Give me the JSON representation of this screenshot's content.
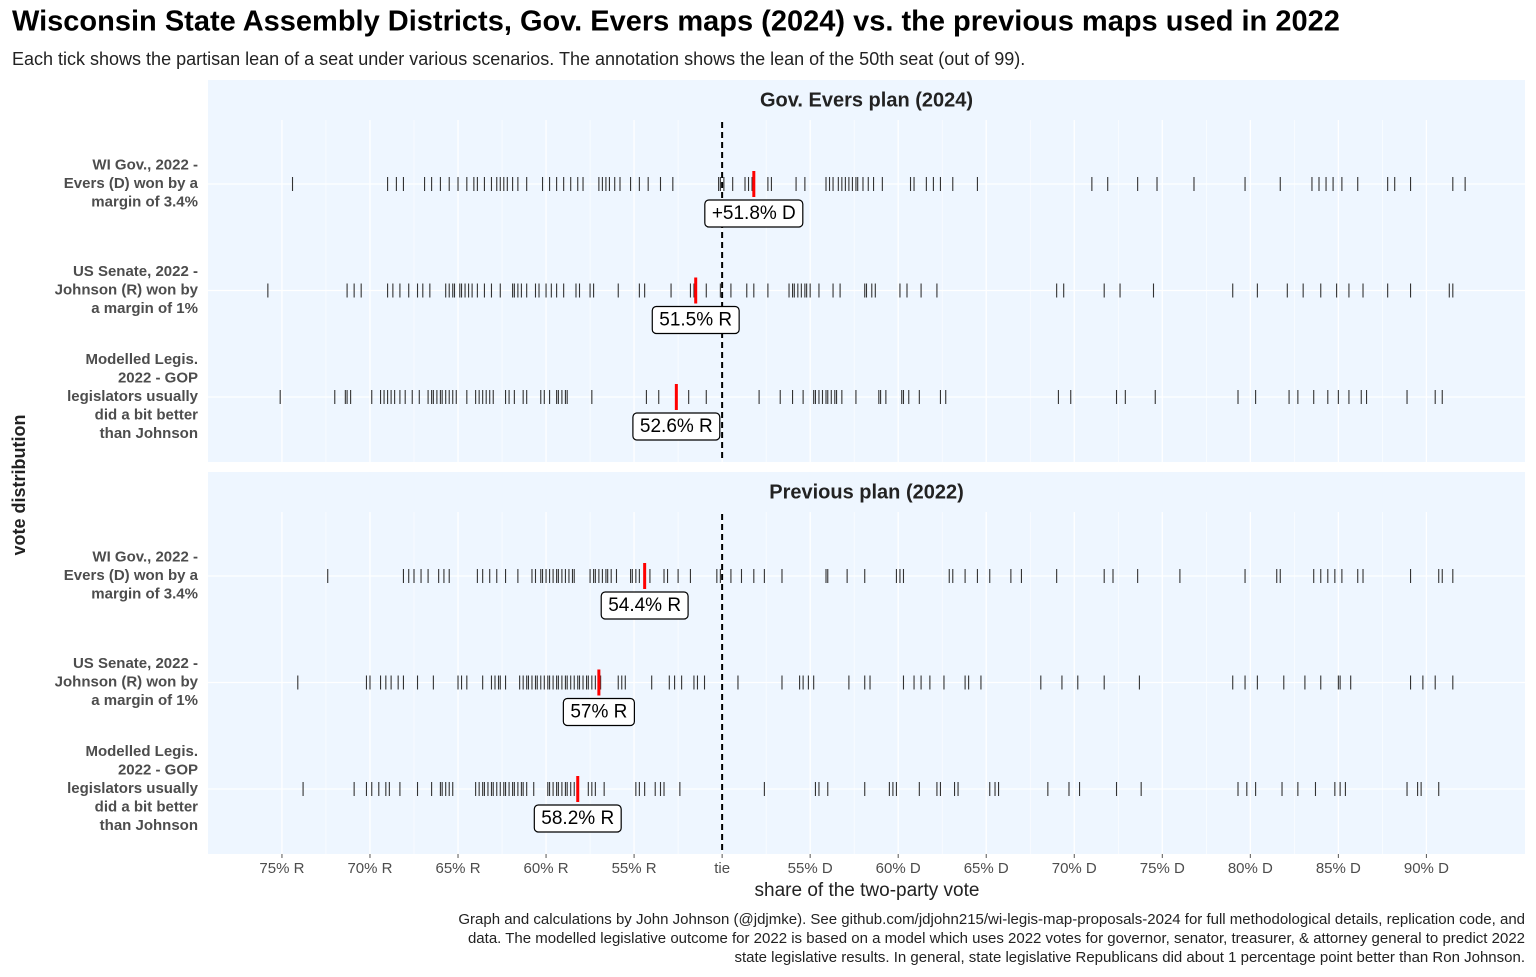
{
  "chart_data": {
    "type": "strip",
    "title": "Wisconsin State Assembly Districts, Gov. Evers maps (2024) vs. the previous maps used in 2022",
    "subtitle": "Each tick shows the partisan lean of a seat under various scenarios. The annotation shows the lean of the 50th seat (out of 99).",
    "x_label": "share of the two-party vote",
    "y_label": "vote distribution",
    "caption": [
      "Graph and calculations by John Johnson (@jdjmke). See github.com/jdjohn215/wi-legis-map-proposals-2024 for full methodological details, replication code, and",
      "data. The modelled legislative outcome for 2022 is based on a model which uses 2022 votes for governor, senator, treasurer, & attorney general to predict 2022",
      "state legislative results. In general, state legislative Republicans did about 1 percentage point better than Ron Johnson."
    ],
    "xlim": [
      -29.2,
      45.6
    ],
    "xticks": [
      {
        "value": -25,
        "label": "75% R"
      },
      {
        "value": -20,
        "label": "70% R"
      },
      {
        "value": -15,
        "label": "65% R"
      },
      {
        "value": -10,
        "label": "60% R"
      },
      {
        "value": -5,
        "label": "55% R"
      },
      {
        "value": 0,
        "label": "tie"
      },
      {
        "value": 5,
        "label": "55% D"
      },
      {
        "value": 10,
        "label": "60% D"
      },
      {
        "value": 15,
        "label": "65% D"
      },
      {
        "value": 20,
        "label": "70% D"
      },
      {
        "value": 25,
        "label": "75% D"
      },
      {
        "value": 30,
        "label": "80% D"
      },
      {
        "value": 35,
        "label": "85% D"
      },
      {
        "value": 40,
        "label": "90% D"
      }
    ],
    "vline": 0,
    "grid": true,
    "color": "#333333",
    "median_color": "#ff0000",
    "panels": [
      {
        "title": "Gov. Evers plan (2024)",
        "rows": [
          {
            "label_lines": [
              "WI Gov., 2022 -",
              "Evers (D) won by a",
              "margin of 3.4%"
            ],
            "median": 1.8,
            "median_label": "+51.8% D",
            "values": [
              -24.4,
              -19.0,
              -18.5,
              -18.1,
              -16.9,
              -16.5,
              -16.0,
              -15.5,
              -15.0,
              -14.5,
              -14.1,
              -13.9,
              -13.5,
              -13.1,
              -12.8,
              -12.6,
              -12.4,
              -12.2,
              -11.9,
              -11.6,
              -11.1,
              -10.2,
              -9.8,
              -9.4,
              -9.0,
              -8.6,
              -8.2,
              -7.9,
              -7.0,
              -6.8,
              -6.6,
              -6.4,
              -6.1,
              -5.8,
              -5.2,
              -4.7,
              -4.2,
              -3.5,
              -2.8,
              -0.2,
              -0.1,
              0.1,
              0.6,
              1.3,
              1.5,
              1.7,
              2.6,
              2.8,
              4.2,
              4.7,
              5.9,
              6.1,
              6.3,
              6.6,
              6.8,
              7.0,
              7.2,
              7.4,
              7.6,
              7.7,
              8.0,
              8.3,
              8.6,
              9.1,
              10.7,
              10.9,
              11.6,
              12.0,
              12.4,
              13.1,
              14.5,
              21.0,
              21.9,
              23.6,
              24.7,
              26.8,
              29.7,
              31.7,
              33.5,
              33.9,
              34.3,
              34.7,
              35.2,
              36.1,
              37.8,
              38.2,
              39.1,
              41.5,
              42.2
            ]
          },
          {
            "label_lines": [
              "US Senate, 2022 -",
              "Johnson (R) won by",
              "a margin of 1%"
            ],
            "median": -1.5,
            "median_label": "51.5% R",
            "values": [
              -25.8,
              -21.3,
              -20.9,
              -20.5,
              -19.0,
              -18.7,
              -18.3,
              -17.8,
              -17.3,
              -17.0,
              -16.6,
              -15.7,
              -15.5,
              -15.3,
              -15.2,
              -14.9,
              -14.8,
              -14.6,
              -14.4,
              -14.2,
              -13.9,
              -13.5,
              -13.1,
              -12.6,
              -11.9,
              -11.8,
              -11.6,
              -11.4,
              -11.1,
              -10.6,
              -10.4,
              -10.0,
              -9.7,
              -9.4,
              -9.0,
              -8.3,
              -8.1,
              -7.5,
              -7.3,
              -5.9,
              -4.7,
              -4.4,
              -2.9,
              -1.8,
              -1.6,
              -0.9,
              -0.1,
              0.5,
              1.4,
              1.8,
              2.6,
              3.8,
              4.0,
              4.1,
              4.3,
              4.5,
              4.7,
              4.8,
              5.0,
              5.5,
              6.3,
              6.7,
              8.1,
              8.2,
              8.5,
              8.7,
              10.1,
              10.5,
              11.3,
              12.2,
              19.0,
              19.4,
              21.7,
              22.6,
              24.5,
              29.0,
              30.4,
              32.1,
              33.0,
              34.0,
              34.9,
              35.6,
              36.4,
              37.8,
              39.1,
              41.3,
              41.5
            ]
          },
          {
            "label_lines": [
              "Modelled Legis.",
              "2022 - GOP",
              "legislators usually",
              "did a bit better",
              "than Johnson"
            ],
            "median": -2.6,
            "median_label": "52.6% R",
            "values": [
              -25.1,
              -22.0,
              -21.4,
              -21.3,
              -21.1,
              -19.9,
              -19.4,
              -19.2,
              -19.0,
              -18.8,
              -18.6,
              -18.3,
              -18.0,
              -17.6,
              -17.2,
              -16.7,
              -16.5,
              -16.4,
              -16.2,
              -16.0,
              -15.9,
              -15.7,
              -15.5,
              -15.3,
              -15.1,
              -14.5,
              -14.0,
              -13.8,
              -13.6,
              -13.4,
              -13.2,
              -13.0,
              -12.3,
              -12.1,
              -11.8,
              -11.3,
              -11.1,
              -10.3,
              -10.1,
              -9.8,
              -9.4,
              -9.3,
              -9.1,
              -8.9,
              -8.8,
              -7.4,
              -4.3,
              -3.6,
              -1.9,
              -0.9,
              2.1,
              3.3,
              4.0,
              4.6,
              5.2,
              5.3,
              5.5,
              5.7,
              5.9,
              6.0,
              6.2,
              6.4,
              6.5,
              6.8,
              7.6,
              8.9,
              9.0,
              9.3,
              10.2,
              10.3,
              10.6,
              11.2,
              12.4,
              12.7,
              19.1,
              19.8,
              22.4,
              22.9,
              24.6,
              29.3,
              30.3,
              32.2,
              32.7,
              33.6,
              34.4,
              35.0,
              35.6,
              36.3,
              36.6,
              38.9,
              40.5,
              40.9
            ]
          }
        ]
      },
      {
        "title": "Previous plan (2022)",
        "rows": [
          {
            "label_lines": [
              "WI Gov., 2022 -",
              "Evers (D) won by a",
              "margin of 3.4%"
            ],
            "median": -4.4,
            "median_label": "54.4% R",
            "values": [
              -22.4,
              -18.1,
              -17.8,
              -17.5,
              -17.1,
              -16.7,
              -16.1,
              -15.8,
              -15.5,
              -13.9,
              -13.6,
              -13.2,
              -12.8,
              -12.3,
              -11.6,
              -10.8,
              -10.6,
              -10.3,
              -10.2,
              -10.0,
              -9.8,
              -9.6,
              -9.4,
              -9.3,
              -9.1,
              -8.9,
              -8.7,
              -8.5,
              -8.4,
              -7.5,
              -7.3,
              -7.2,
              -7.0,
              -6.8,
              -6.6,
              -6.5,
              -6.3,
              -6.0,
              -5.2,
              -5.1,
              -4.9,
              -4.7,
              -4.1,
              -3.3,
              -3.1,
              -2.5,
              -1.8,
              -0.3,
              -0.1,
              0.5,
              1.1,
              1.8,
              2.4,
              3.4,
              5.9,
              6.0,
              7.1,
              8.1,
              9.9,
              10.1,
              10.3,
              12.9,
              13.1,
              13.8,
              14.5,
              15.2,
              16.4,
              17.0,
              19.0,
              21.7,
              22.2,
              23.6,
              26.0,
              29.7,
              31.5,
              31.7,
              33.6,
              34.0,
              34.4,
              34.8,
              35.2,
              36.1,
              36.4,
              39.1,
              40.7,
              40.9,
              41.5
            ]
          },
          {
            "label_lines": [
              "US Senate, 2022 -",
              "Johnson (R) won by",
              "a margin of 1%"
            ],
            "median": -7,
            "median_label": "57% R",
            "values": [
              -24.1,
              -20.2,
              -20.0,
              -19.4,
              -19.1,
              -18.8,
              -18.4,
              -18.1,
              -17.3,
              -16.4,
              -15.0,
              -14.8,
              -14.5,
              -13.6,
              -13.1,
              -12.9,
              -12.7,
              -12.6,
              -12.3,
              -11.5,
              -11.3,
              -11.1,
              -11.0,
              -10.8,
              -10.6,
              -10.5,
              -10.3,
              -10.1,
              -9.9,
              -9.8,
              -9.6,
              -9.4,
              -9.3,
              -9.1,
              -8.9,
              -8.8,
              -8.6,
              -8.4,
              -8.2,
              -8.1,
              -7.9,
              -7.7,
              -7.6,
              -7.4,
              -7.2,
              -6.9,
              -5.9,
              -5.7,
              -5.5,
              -4.0,
              -3.0,
              -2.7,
              -2.3,
              -1.6,
              -1.4,
              -1.0,
              0.9,
              3.4,
              4.4,
              4.6,
              4.9,
              5.2,
              7.2,
              8.1,
              8.4,
              10.3,
              10.9,
              11.3,
              11.8,
              12.6,
              13.8,
              14.0,
              14.7,
              18.1,
              19.3,
              20.2,
              21.7,
              23.7,
              29.0,
              29.7,
              30.4,
              31.9,
              33.1,
              34.0,
              35.0,
              35.1,
              35.7,
              39.1,
              39.8,
              40.5,
              41.5
            ]
          },
          {
            "label_lines": [
              "Modelled Legis.",
              "2022 - GOP",
              "legislators usually",
              "did a bit better",
              "than Johnson"
            ],
            "median": -8.2,
            "median_label": "58.2% R",
            "values": [
              -23.8,
              -20.9,
              -20.2,
              -19.9,
              -19.5,
              -19.1,
              -18.9,
              -18.3,
              -17.3,
              -16.5,
              -16.0,
              -15.9,
              -15.7,
              -15.5,
              -15.3,
              -14.0,
              -13.8,
              -13.6,
              -13.5,
              -13.3,
              -13.1,
              -13.0,
              -12.8,
              -12.6,
              -12.4,
              -12.3,
              -12.1,
              -11.9,
              -11.8,
              -11.6,
              -11.4,
              -11.3,
              -11.1,
              -10.7,
              -9.9,
              -9.8,
              -9.6,
              -9.4,
              -9.3,
              -9.1,
              -8.9,
              -8.8,
              -8.6,
              -8.4,
              -7.6,
              -7.4,
              -7.2,
              -6.7,
              -4.9,
              -4.7,
              -4.4,
              -3.8,
              -3.5,
              -3.3,
              -2.4,
              2.4,
              5.3,
              5.5,
              6.0,
              8.1,
              9.5,
              9.7,
              9.9,
              11.2,
              12.2,
              12.4,
              13.2,
              13.4,
              15.2,
              15.5,
              15.7,
              18.5,
              19.7,
              20.3,
              22.4,
              23.8,
              29.3,
              29.8,
              30.3,
              31.8,
              32.7,
              33.7,
              34.8,
              35.1,
              35.4,
              38.9,
              39.5,
              39.7,
              40.7
            ]
          }
        ]
      }
    ]
  }
}
